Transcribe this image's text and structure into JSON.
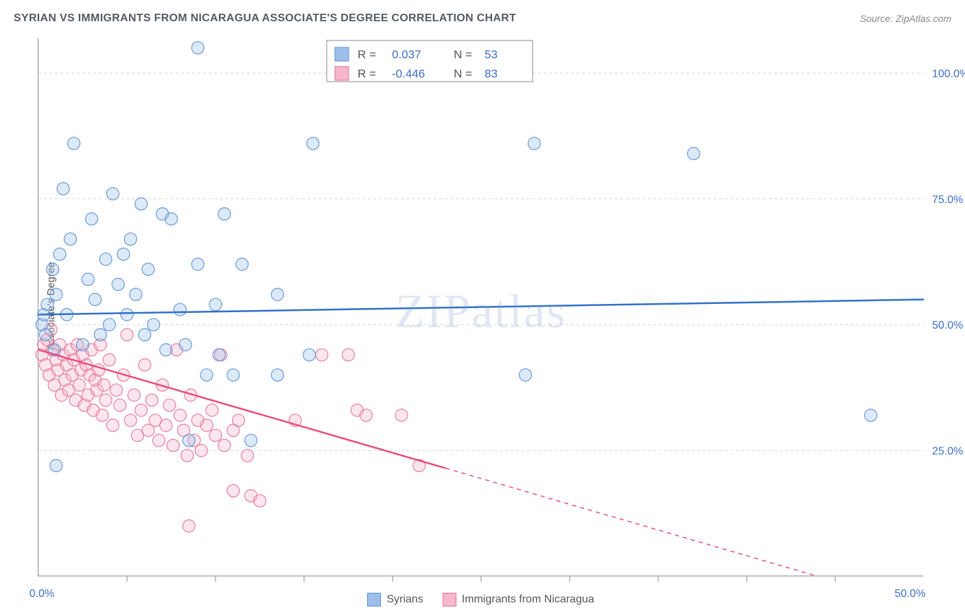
{
  "title": "SYRIAN VS IMMIGRANTS FROM NICARAGUA ASSOCIATE'S DEGREE CORRELATION CHART",
  "source": "Source: ZipAtlas.com",
  "y_axis_label": "Associate's Degree",
  "watermark": "ZIPatlas",
  "chart": {
    "type": "scatter",
    "xlim": [
      0,
      50
    ],
    "ylim": [
      0,
      107
    ],
    "x_ticks": [
      0,
      50
    ],
    "x_tick_labels": [
      "0.0%",
      "50.0%"
    ],
    "x_minor_ticks": [
      5,
      10,
      15,
      20,
      25,
      30,
      35,
      40,
      45
    ],
    "y_ticks": [
      25,
      50,
      75,
      100
    ],
    "y_tick_labels": [
      "25.0%",
      "50.0%",
      "75.0%",
      "100.0%"
    ],
    "grid_color": "#d5d5d5",
    "plot_border_color": "#888888",
    "background_color": "#ffffff",
    "point_radius": 9,
    "series": [
      {
        "name": "Syrians",
        "color_fill": "#9cc0ea",
        "color_stroke": "#5a8fd6",
        "trend_color": "#2f6fc7",
        "R": "0.037",
        "N": "53",
        "trend": {
          "x1": 0,
          "y1": 52,
          "x2": 50,
          "y2": 55,
          "solid_to_x": 50
        },
        "points": [
          [
            0.2,
            50
          ],
          [
            0.3,
            52
          ],
          [
            0.4,
            48
          ],
          [
            0.5,
            54
          ],
          [
            0.8,
            61
          ],
          [
            0.9,
            45
          ],
          [
            1.0,
            56
          ],
          [
            1.2,
            64
          ],
          [
            1.4,
            77
          ],
          [
            1.6,
            52
          ],
          [
            1.8,
            67
          ],
          [
            2.0,
            86
          ],
          [
            2.5,
            46
          ],
          [
            2.8,
            59
          ],
          [
            3.0,
            71
          ],
          [
            3.2,
            55
          ],
          [
            3.5,
            48
          ],
          [
            3.8,
            63
          ],
          [
            4.0,
            50
          ],
          [
            4.2,
            76
          ],
          [
            4.5,
            58
          ],
          [
            4.8,
            64
          ],
          [
            5.0,
            52
          ],
          [
            5.2,
            67
          ],
          [
            5.5,
            56
          ],
          [
            5.8,
            74
          ],
          [
            6.0,
            48
          ],
          [
            6.2,
            61
          ],
          [
            6.5,
            50
          ],
          [
            7.0,
            72
          ],
          [
            7.2,
            45
          ],
          [
            7.5,
            71
          ],
          [
            8.0,
            53
          ],
          [
            8.3,
            46
          ],
          [
            8.5,
            27
          ],
          [
            9.0,
            62
          ],
          [
            9.5,
            40
          ],
          [
            10.0,
            54
          ],
          [
            10.2,
            44
          ],
          [
            10.5,
            72
          ],
          [
            11.0,
            40
          ],
          [
            11.5,
            62
          ],
          [
            12.0,
            27
          ],
          [
            13.5,
            56
          ],
          [
            13.5,
            40
          ],
          [
            15.3,
            44
          ],
          [
            15.5,
            86
          ],
          [
            9.0,
            105
          ],
          [
            27.5,
            40
          ],
          [
            28.0,
            86
          ],
          [
            37.0,
            84
          ],
          [
            47.0,
            32
          ],
          [
            1.0,
            22
          ]
        ]
      },
      {
        "name": "Immigrants from Nicaragua",
        "color_fill": "#f5b8ca",
        "color_stroke": "#e57093",
        "trend_color": "#e94b7a",
        "R": "-0.446",
        "N": "83",
        "trend": {
          "x1": 0,
          "y1": 45,
          "x2": 44,
          "y2": 0,
          "solid_to_x": 23
        },
        "points": [
          [
            0.2,
            44
          ],
          [
            0.3,
            46
          ],
          [
            0.4,
            42
          ],
          [
            0.5,
            47
          ],
          [
            0.6,
            40
          ],
          [
            0.7,
            49
          ],
          [
            0.8,
            45
          ],
          [
            0.9,
            38
          ],
          [
            1.0,
            43
          ],
          [
            1.1,
            41
          ],
          [
            1.2,
            46
          ],
          [
            1.3,
            36
          ],
          [
            1.4,
            44
          ],
          [
            1.5,
            39
          ],
          [
            1.6,
            42
          ],
          [
            1.7,
            37
          ],
          [
            1.8,
            45
          ],
          [
            1.9,
            40
          ],
          [
            2.0,
            43
          ],
          [
            2.1,
            35
          ],
          [
            2.2,
            46
          ],
          [
            2.3,
            38
          ],
          [
            2.4,
            41
          ],
          [
            2.5,
            44
          ],
          [
            2.6,
            34
          ],
          [
            2.7,
            42
          ],
          [
            2.8,
            36
          ],
          [
            2.9,
            40
          ],
          [
            3.0,
            45
          ],
          [
            3.1,
            33
          ],
          [
            3.2,
            39
          ],
          [
            3.3,
            37
          ],
          [
            3.4,
            41
          ],
          [
            3.5,
            46
          ],
          [
            3.6,
            32
          ],
          [
            3.7,
            38
          ],
          [
            3.8,
            35
          ],
          [
            4.0,
            43
          ],
          [
            4.2,
            30
          ],
          [
            4.4,
            37
          ],
          [
            4.6,
            34
          ],
          [
            4.8,
            40
          ],
          [
            5.0,
            48
          ],
          [
            5.2,
            31
          ],
          [
            5.4,
            36
          ],
          [
            5.6,
            28
          ],
          [
            5.8,
            33
          ],
          [
            6.0,
            42
          ],
          [
            6.2,
            29
          ],
          [
            6.4,
            35
          ],
          [
            6.6,
            31
          ],
          [
            6.8,
            27
          ],
          [
            7.0,
            38
          ],
          [
            7.2,
            30
          ],
          [
            7.4,
            34
          ],
          [
            7.6,
            26
          ],
          [
            7.8,
            45
          ],
          [
            8.0,
            32
          ],
          [
            8.2,
            29
          ],
          [
            8.4,
            24
          ],
          [
            8.6,
            36
          ],
          [
            8.8,
            27
          ],
          [
            9.0,
            31
          ],
          [
            9.2,
            25
          ],
          [
            9.5,
            30
          ],
          [
            9.8,
            33
          ],
          [
            10.0,
            28
          ],
          [
            10.3,
            44
          ],
          [
            10.5,
            26
          ],
          [
            11.0,
            29
          ],
          [
            11.3,
            31
          ],
          [
            11.8,
            24
          ],
          [
            12.0,
            16
          ],
          [
            12.5,
            15
          ],
          [
            8.5,
            10
          ],
          [
            14.5,
            31
          ],
          [
            16.0,
            44
          ],
          [
            17.5,
            44
          ],
          [
            18.0,
            33
          ],
          [
            18.5,
            32
          ],
          [
            20.5,
            32
          ],
          [
            21.5,
            22
          ],
          [
            11.0,
            17
          ]
        ]
      }
    ]
  },
  "stats_box": {
    "rows": [
      {
        "swatch_fill": "#9cc0ea",
        "swatch_stroke": "#5a8fd6",
        "r_label": "R =",
        "r_val": "0.037",
        "n_label": "N =",
        "n_val": "53"
      },
      {
        "swatch_fill": "#f5b8ca",
        "swatch_stroke": "#e57093",
        "r_label": "R =",
        "r_val": "-0.446",
        "n_label": "N =",
        "n_val": "83"
      }
    ]
  },
  "legend": [
    {
      "label": "Syrians",
      "fill": "#9cc0ea",
      "stroke": "#5a8fd6"
    },
    {
      "label": "Immigrants from Nicaragua",
      "fill": "#f5b8ca",
      "stroke": "#e57093"
    }
  ]
}
